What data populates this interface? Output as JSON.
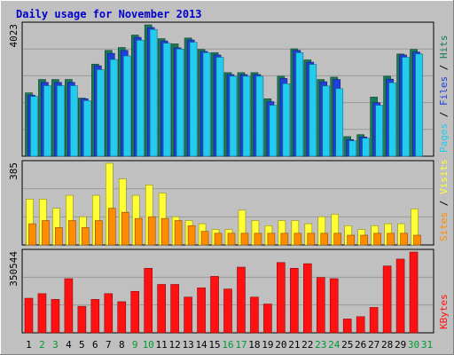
{
  "title": "Daily usage for November 2013",
  "colors": {
    "background": "#c0c0c0",
    "panel": "#c0c0c0",
    "title": "#0000cc",
    "hits": "#1a7a55",
    "files": "#1f3fd8",
    "pages": "#22ccee",
    "visits": "#ffff33",
    "sites": "#ff8c00",
    "kbytes": "#ff1111",
    "weekend_label": "#009933",
    "weekday_label": "#000000"
  },
  "chart_data": [
    {
      "type": "bar",
      "panel": "top",
      "y_max_label": "4023",
      "ylim": [
        0,
        4023
      ],
      "categories": [
        "1",
        "2",
        "3",
        "4",
        "5",
        "6",
        "7",
        "8",
        "9",
        "10",
        "11",
        "12",
        "13",
        "14",
        "15",
        "16",
        "17",
        "18",
        "19",
        "20",
        "21",
        "22",
        "23",
        "24",
        "25",
        "26",
        "27",
        "28",
        "29",
        "30",
        "31"
      ],
      "weekend_days": [
        "2",
        "3",
        "9",
        "10",
        "16",
        "17",
        "23",
        "24",
        "30",
        "31"
      ],
      "right_labels": [
        {
          "text": "Hits",
          "color": "#1a7a55"
        },
        {
          "text": "Files",
          "color": "#1f3fd8"
        },
        {
          "text": "Pages",
          "color": "#22ccee"
        }
      ],
      "separator": "/",
      "series": [
        {
          "name": "Hits",
          "color": "#1a7a55",
          "values": [
            1940,
            2350,
            2350,
            2350,
            1780,
            2820,
            3240,
            3330,
            3710,
            4023,
            3600,
            3440,
            3620,
            3270,
            3170,
            2560,
            2560,
            2560,
            1760,
            2450,
            3290,
            2950,
            2350,
            2420,
            600,
            660,
            1810,
            2450,
            3130,
            3270,
            0
          ]
        },
        {
          "name": "Files",
          "color": "#1f3fd8",
          "values": [
            1870,
            2260,
            2260,
            2260,
            1760,
            2770,
            3150,
            3240,
            3640,
            3940,
            3530,
            3320,
            3560,
            3210,
            3100,
            2500,
            2500,
            2500,
            1670,
            2380,
            3240,
            2880,
            2280,
            2350,
            510,
            590,
            1640,
            2360,
            3100,
            3190,
            0
          ]
        },
        {
          "name": "Pages",
          "color": "#22ccee",
          "values": [
            1830,
            2160,
            2160,
            2160,
            1700,
            2650,
            2960,
            3070,
            3550,
            3880,
            3460,
            3280,
            3490,
            3170,
            3030,
            2450,
            2450,
            2450,
            1560,
            2220,
            3170,
            2810,
            2150,
            2070,
            470,
            550,
            1560,
            2250,
            3030,
            3130,
            0
          ]
        }
      ]
    },
    {
      "type": "bar",
      "panel": "middle",
      "y_max_label": "385",
      "ylim": [
        0,
        385
      ],
      "right_labels": [
        {
          "text": "Visits",
          "color": "#ffff33"
        },
        {
          "text": "Sites",
          "color": "#ff8c00"
        }
      ],
      "separator": "/",
      "series": [
        {
          "name": "Visits",
          "color": "#ffff33",
          "values": [
            216,
            216,
            173,
            234,
            133,
            234,
            385,
            311,
            234,
            283,
            245,
            133,
            115,
            100,
            73,
            73,
            164,
            115,
            91,
            115,
            115,
            100,
            133,
            145,
            91,
            73,
            91,
            100,
            100,
            170,
            0
          ]
        },
        {
          "name": "Sites",
          "color": "#ff8c00",
          "values": [
            100,
            115,
            82,
            115,
            82,
            115,
            173,
            154,
            125,
            133,
            125,
            115,
            91,
            64,
            55,
            55,
            55,
            55,
            55,
            55,
            55,
            55,
            55,
            55,
            46,
            46,
            55,
            55,
            55,
            46,
            0
          ]
        }
      ]
    },
    {
      "type": "bar",
      "panel": "bottom",
      "y_max_label": "350544",
      "ylim": [
        0,
        350544
      ],
      "right_labels": [
        {
          "text": "KBytes",
          "color": "#ff1111"
        }
      ],
      "series": [
        {
          "name": "KBytes",
          "color": "#ff1111",
          "values": [
            150000,
            170000,
            145000,
            235000,
            115000,
            145000,
            170000,
            135000,
            180000,
            280000,
            210000,
            210000,
            155000,
            195000,
            245000,
            190000,
            285000,
            155000,
            125000,
            305000,
            280000,
            300000,
            240000,
            235000,
            60000,
            70000,
            110000,
            290000,
            320000,
            350544,
            0
          ]
        }
      ]
    }
  ]
}
